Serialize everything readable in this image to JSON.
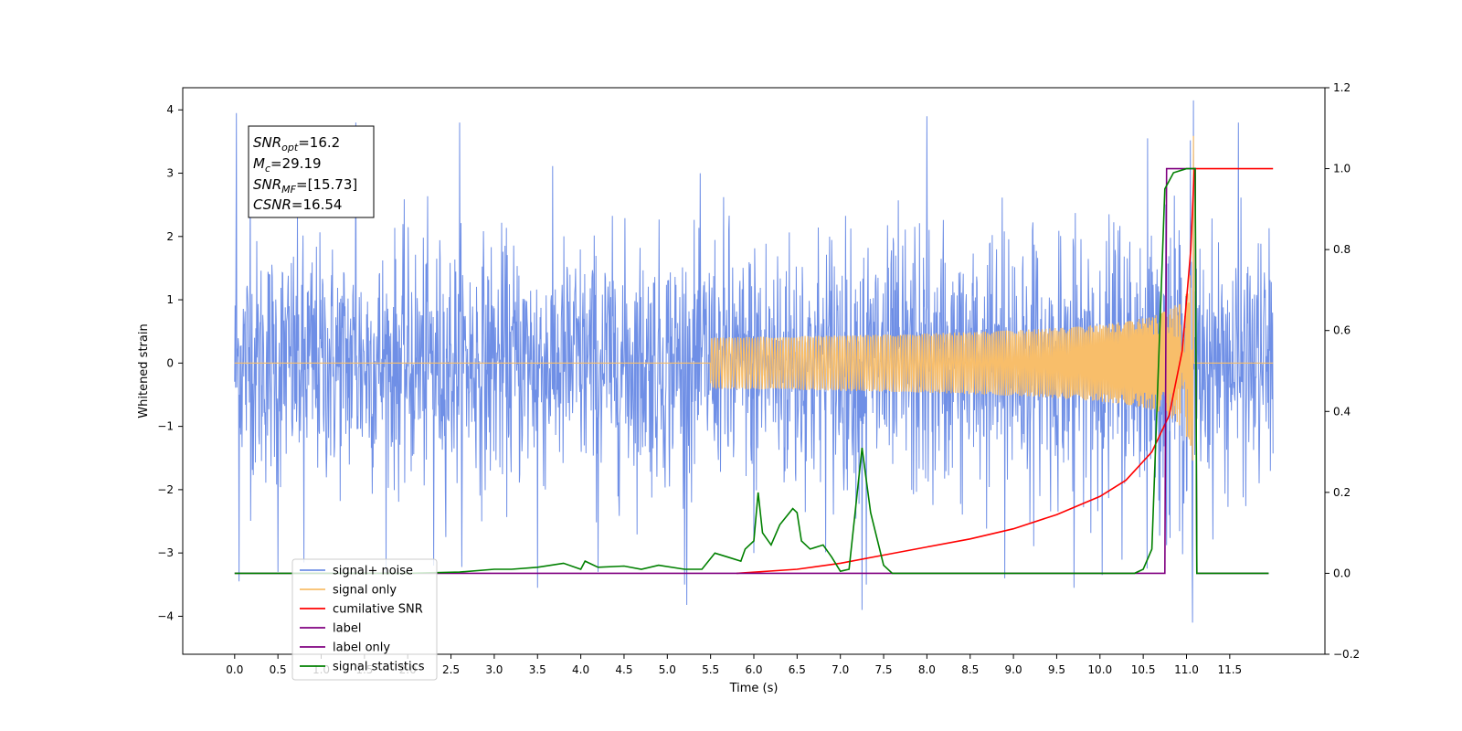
{
  "chart_data": {
    "type": "line",
    "xlabel": "Time (s)",
    "ylabel": "Whitened strain",
    "xlim": [
      -0.6,
      12.6
    ],
    "ylim": [
      -4.6,
      4.35
    ],
    "y2lim": [
      -0.2,
      1.2
    ],
    "xticks": [
      "0.0",
      "0.5",
      "1.0",
      "1.5",
      "2.0",
      "2.5",
      "3.0",
      "3.5",
      "4.0",
      "4.5",
      "5.0",
      "5.5",
      "6.0",
      "6.5",
      "7.0",
      "7.5",
      "8.0",
      "8.5",
      "9.0",
      "9.5",
      "10.0",
      "10.5",
      "11.0",
      "11.5"
    ],
    "yticks": [
      "4",
      "3",
      "2",
      "1",
      "0",
      "−1",
      "−2",
      "−3",
      "−4"
    ],
    "y2ticks": [
      "1.2",
      "1.0",
      "0.8",
      "0.6",
      "0.4",
      "0.2",
      "0.0",
      "−0.2"
    ],
    "grid": false,
    "annotation": {
      "lines": [
        {
          "sym": "SNR",
          "sub": "opt",
          "value": "=16.2"
        },
        {
          "sym": "M",
          "sub": "c",
          "value": "=29.19"
        },
        {
          "sym": "SNR",
          "sub": "MF",
          "value": "=[15.73]"
        },
        {
          "sym": "CSNR",
          "sub": "",
          "value": "=16.54"
        }
      ]
    },
    "legend_position": "lower-left",
    "series": [
      {
        "name": "signal+ noise",
        "color": "#6f8fe6",
        "axis": "left",
        "noise_std": 0.95,
        "x_range": [
          0.0,
          12.0
        ],
        "spikes": [
          [
            0.02,
            3.95
          ],
          [
            0.05,
            -3.45
          ],
          [
            0.18,
            3.0
          ],
          [
            0.5,
            -3.3
          ],
          [
            0.8,
            -3.15
          ],
          [
            1.4,
            3.8
          ],
          [
            2.3,
            -3.2
          ],
          [
            2.6,
            3.8
          ],
          [
            3.5,
            -3.55
          ],
          [
            4.2,
            -3.3
          ],
          [
            5.2,
            -3.5
          ],
          [
            6.0,
            -3.0
          ],
          [
            7.25,
            -3.9
          ],
          [
            7.3,
            -3.5
          ],
          [
            8.0,
            3.9
          ],
          [
            8.9,
            -3.4
          ],
          [
            9.7,
            -3.55
          ],
          [
            10.55,
            3.55
          ],
          [
            10.8,
            -2.4
          ],
          [
            11.07,
            -4.1
          ],
          [
            11.6,
            3.8
          ]
        ]
      },
      {
        "name": "signal only",
        "color": "#f8be6a",
        "axis": "left",
        "chirp": {
          "t_merge": 11.08,
          "peak": 3.7
        }
      },
      {
        "name": "cumilative SNR",
        "color": "#ff0000",
        "axis": "right",
        "points": [
          [
            5.8,
            0.0
          ],
          [
            6.5,
            0.01
          ],
          [
            7.0,
            0.025
          ],
          [
            7.5,
            0.045
          ],
          [
            8.0,
            0.065
          ],
          [
            8.5,
            0.085
          ],
          [
            9.0,
            0.11
          ],
          [
            9.5,
            0.145
          ],
          [
            10.0,
            0.19
          ],
          [
            10.3,
            0.23
          ],
          [
            10.6,
            0.3
          ],
          [
            10.8,
            0.39
          ],
          [
            10.95,
            0.55
          ],
          [
            11.05,
            0.8
          ],
          [
            11.09,
            1.0
          ],
          [
            12.0,
            1.0
          ]
        ]
      },
      {
        "name": "label",
        "color": "#800080",
        "axis": "right",
        "points": [
          [
            0.0,
            0.0
          ],
          [
            10.75,
            0.0
          ],
          [
            10.77,
            1.0
          ],
          [
            11.1,
            1.0
          ],
          [
            11.12,
            0.0
          ],
          [
            11.95,
            0.0
          ]
        ]
      },
      {
        "name": "label only",
        "color": "#800080",
        "axis": "right",
        "legend_only": true
      },
      {
        "name": "signal statistics",
        "color": "#008000",
        "axis": "right",
        "points": [
          [
            0.0,
            0.0
          ],
          [
            2.0,
            0.0
          ],
          [
            2.6,
            0.003
          ],
          [
            3.0,
            0.01
          ],
          [
            3.2,
            0.01
          ],
          [
            3.5,
            0.015
          ],
          [
            3.8,
            0.025
          ],
          [
            4.0,
            0.01
          ],
          [
            4.05,
            0.03
          ],
          [
            4.2,
            0.015
          ],
          [
            4.5,
            0.018
          ],
          [
            4.7,
            0.01
          ],
          [
            4.9,
            0.02
          ],
          [
            5.2,
            0.01
          ],
          [
            5.4,
            0.01
          ],
          [
            5.55,
            0.05
          ],
          [
            5.7,
            0.04
          ],
          [
            5.85,
            0.03
          ],
          [
            5.9,
            0.06
          ],
          [
            6.0,
            0.08
          ],
          [
            6.05,
            0.2
          ],
          [
            6.1,
            0.1
          ],
          [
            6.2,
            0.07
          ],
          [
            6.3,
            0.12
          ],
          [
            6.45,
            0.16
          ],
          [
            6.5,
            0.15
          ],
          [
            6.55,
            0.08
          ],
          [
            6.65,
            0.06
          ],
          [
            6.8,
            0.07
          ],
          [
            6.9,
            0.04
          ],
          [
            7.0,
            0.005
          ],
          [
            7.1,
            0.01
          ],
          [
            7.25,
            0.31
          ],
          [
            7.35,
            0.15
          ],
          [
            7.5,
            0.02
          ],
          [
            7.6,
            0.0
          ],
          [
            10.4,
            0.0
          ],
          [
            10.5,
            0.01
          ],
          [
            10.6,
            0.06
          ],
          [
            10.75,
            0.95
          ],
          [
            10.85,
            0.99
          ],
          [
            11.0,
            1.0
          ],
          [
            11.1,
            1.0
          ],
          [
            11.12,
            0.0
          ],
          [
            11.95,
            0.0
          ]
        ]
      }
    ]
  }
}
